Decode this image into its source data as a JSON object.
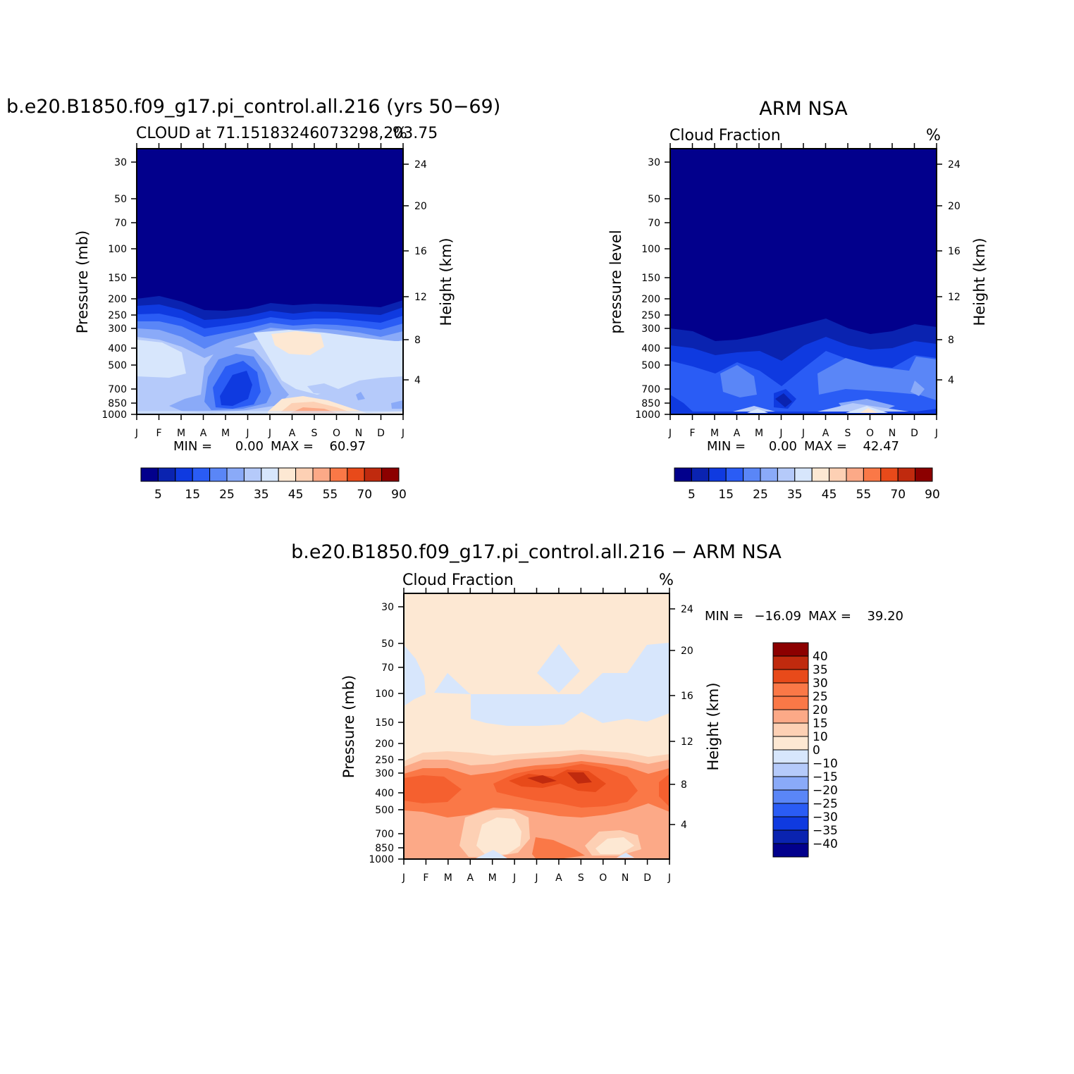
{
  "page_type": "NCAR CESM diagnostics – cloud fraction annual cycle",
  "colorbar_abs_labels": [
    "5",
    "15",
    "25",
    "35",
    "45",
    "55",
    "70",
    "90"
  ],
  "colorbar_abs_colors": [
    "#02008c",
    "#0a23b0",
    "#0f3ae0",
    "#2a5cf5",
    "#5a86f7",
    "#8aaaf8",
    "#b5cafa",
    "#d7e6fc",
    "#fde8d3",
    "#fdd0b4",
    "#fca987",
    "#fa7847",
    "#e84a1a",
    "#c02a0e",
    "#8c0000"
  ],
  "colorbar_diff_labels": [
    "40",
    "35",
    "30",
    "25",
    "20",
    "15",
    "10",
    "0",
    "−10",
    "−15",
    "−20",
    "−25",
    "−30",
    "−35",
    "−40"
  ],
  "colorbar_diff_colors": [
    "#8c0000",
    "#c02a0e",
    "#e84a1a",
    "#fa7847",
    "#fa7847",
    "#fca987",
    "#fdd0b4",
    "#fde8d3",
    "#d7e6fc",
    "#b5cafa",
    "#8aaaf8",
    "#5a86f7",
    "#2a5cf5",
    "#0f3ae0",
    "#0a23b0",
    "#02008c"
  ],
  "chart_data": [
    {
      "type": "heatmap",
      "title": "b.e20.B1850.f09_g17.pi_control.all.216 (yrs 50−69)",
      "subtitle_left": "CLOUD at 71.15183246073298,203.75",
      "subtitle_right": "%",
      "ylabel": "Pressure (mb)",
      "ylabel_right": "Height (km)",
      "x_ticklabels": [
        "J",
        "F",
        "M",
        "A",
        "M",
        "J",
        "J",
        "A",
        "S",
        "O",
        "N",
        "D",
        "J"
      ],
      "y_ticklabels": [
        "30",
        "50",
        "70",
        "100",
        "150",
        "200",
        "250",
        "300",
        "400",
        "500",
        "700",
        "850",
        "1000"
      ],
      "y_right_ticklabels": [
        "24",
        "20",
        "16",
        "12",
        "8",
        "4"
      ],
      "min_label": "MIN =",
      "min_value": "0.00",
      "max_label": "MAX =",
      "max_value": "60.97",
      "cloud_top_pressure": [
        215,
        225,
        250,
        275,
        280,
        270,
        255,
        255,
        260,
        265,
        270,
        265,
        245
      ],
      "low_cloud_max": [
        25,
        30,
        35,
        35,
        20,
        25,
        35,
        45,
        50,
        45,
        40,
        35,
        35
      ]
    },
    {
      "type": "heatmap",
      "title": "ARM NSA",
      "subtitle_left": "Cloud Fraction",
      "subtitle_right": "%",
      "ylabel": "pressure level",
      "ylabel_right": "Height (km)",
      "x_ticklabels": [
        "J",
        "F",
        "M",
        "A",
        "M",
        "J",
        "J",
        "A",
        "S",
        "O",
        "N",
        "D",
        "J"
      ],
      "y_ticklabels": [
        "30",
        "50",
        "70",
        "100",
        "150",
        "200",
        "250",
        "300",
        "400",
        "500",
        "700",
        "850",
        "1000"
      ],
      "y_right_ticklabels": [
        "24",
        "20",
        "16",
        "12",
        "8",
        "4"
      ],
      "min_label": "MIN =",
      "min_value": "0.00",
      "max_label": "MAX =",
      "max_value": "42.47",
      "cloud_top_pressure": [
        300,
        330,
        360,
        345,
        320,
        300,
        290,
        280,
        300,
        320,
        315,
        305,
        300
      ]
    },
    {
      "type": "heatmap",
      "title": "b.e20.B1850.f09_g17.pi_control.all.216 − ARM NSA",
      "subtitle_left": "Cloud Fraction",
      "subtitle_right": "%",
      "ylabel": "Pressure (mb)",
      "ylabel_right": "Height (km)",
      "x_ticklabels": [
        "J",
        "F",
        "M",
        "A",
        "M",
        "J",
        "J",
        "A",
        "S",
        "O",
        "N",
        "D",
        "J"
      ],
      "y_ticklabels": [
        "30",
        "50",
        "70",
        "100",
        "150",
        "200",
        "250",
        "300",
        "400",
        "500",
        "700",
        "850",
        "1000"
      ],
      "y_right_ticklabels": [
        "24",
        "20",
        "16",
        "12",
        "8",
        "4"
      ],
      "min_label": "MIN =",
      "min_value": "−16.09",
      "max_label": "MAX =",
      "max_value": "39.20",
      "peak_difference_month": "A"
    }
  ]
}
